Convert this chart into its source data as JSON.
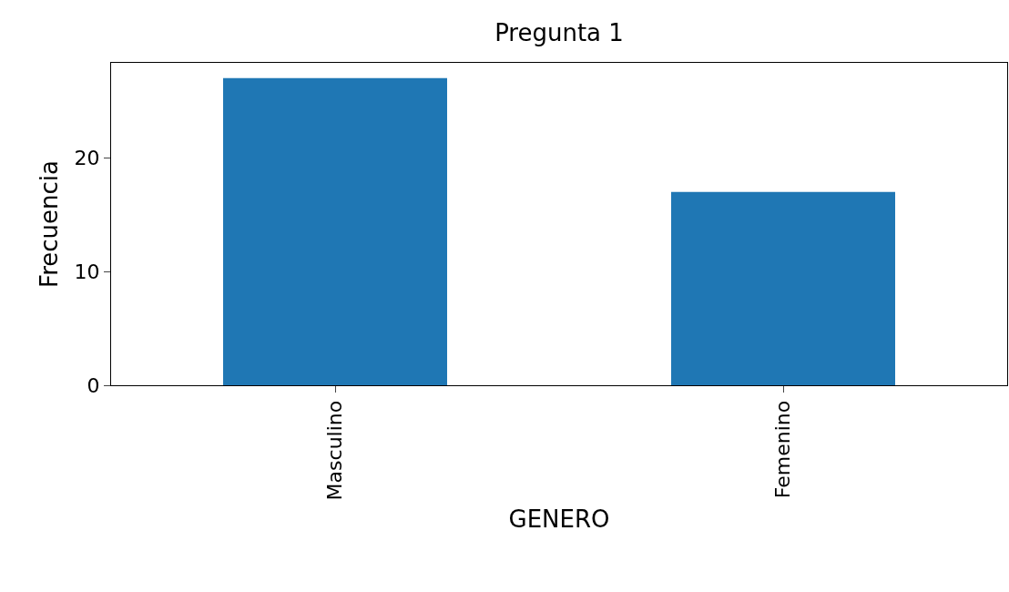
{
  "chart_data": {
    "type": "bar",
    "title": "Pregunta 1",
    "xlabel": "GENERO",
    "ylabel": "Frecuencia",
    "categories": [
      "Masculino",
      "Femenino"
    ],
    "values": [
      27,
      17
    ],
    "color": "#1f77b4",
    "ylim": [
      0,
      28.35
    ],
    "yticks": [
      0,
      10,
      20
    ]
  }
}
